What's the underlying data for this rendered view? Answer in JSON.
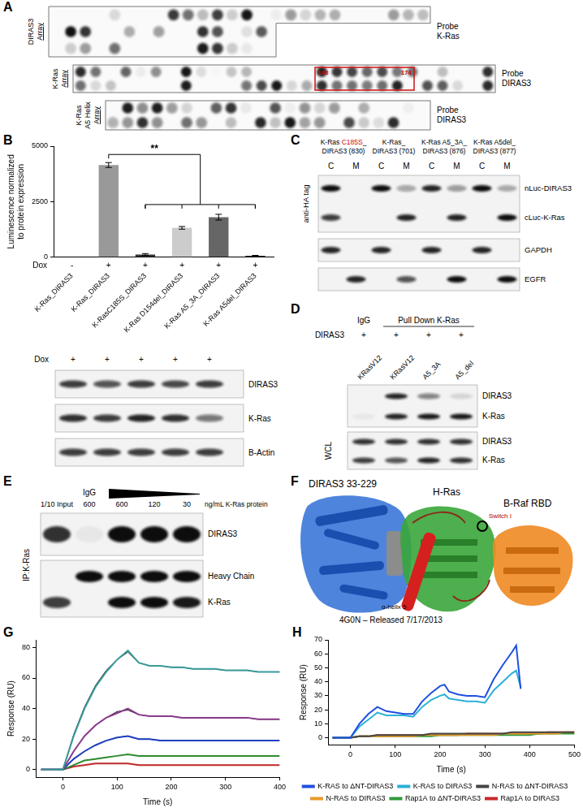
{
  "figure": {
    "panel_labels": {
      "a": "A",
      "b": "B",
      "c": "C",
      "d": "D",
      "e": "E",
      "f": "F",
      "g": "G",
      "h": "H"
    },
    "a": {
      "arrays": [
        {
          "label": [
            "DIRAS3",
            "Array"
          ],
          "probe": [
            "Probe",
            "K-Ras"
          ]
        },
        {
          "label": [
            "K-Ras",
            "Array"
          ],
          "probe": [
            "Probe",
            "DIRAS3"
          ],
          "box": [
            "148",
            "174"
          ]
        },
        {
          "label": [
            "K-Ras",
            "A5 Helix",
            "Array"
          ],
          "probe": [
            "Probe",
            "DIRAS3"
          ]
        }
      ]
    },
    "b_blot": {
      "treatment": "Dox",
      "signs": [
        "+",
        "+",
        "+",
        "+",
        "+"
      ],
      "rows": [
        "DIRAS3",
        "K-Ras",
        "B-Actin"
      ]
    },
    "c": {
      "side_label": "anti-HA tag",
      "lanes": [
        {
          "lines": [
            "K-Ras C185S_",
            "DIRAS3 (830)"
          ],
          "highlight": "C185S"
        },
        {
          "lines": [
            "K-Ras_",
            "DIRAS3 (701)"
          ]
        },
        {
          "lines": [
            "K-Ras A5_3A_",
            "DIRAS3 (876)"
          ]
        },
        {
          "lines": [
            "K-Ras A5del_",
            "DIRAS3 (877)"
          ]
        }
      ],
      "fractions": [
        "C",
        "M"
      ],
      "rows": [
        "nLuc-DIRAS3",
        "cLuc-K-Ras",
        "GAPDH",
        "EGFR"
      ]
    },
    "d": {
      "groups": [
        "IgG",
        "Pull Down K-Ras"
      ],
      "treatment": "DIRAS3",
      "signs": [
        "+",
        "+",
        "+",
        "+"
      ],
      "lanes": [
        "KRasV12",
        "KRasV12",
        "A5_3A",
        "A5_del"
      ],
      "ip_rows": [
        "DIRAS3",
        "K-Ras"
      ],
      "wcl_label": "WCL",
      "wcl_rows": [
        "DIRAS3",
        "K-Ras"
      ]
    },
    "e": {
      "input": "1/10 Input",
      "igg": "IgG",
      "amounts": [
        600,
        600,
        120,
        30
      ],
      "unit": "ng/mL K-Ras protein",
      "side_label": "IP:K-Ras",
      "rows": [
        "DIRAS3",
        "Heavy Chain",
        "K-Ras"
      ]
    },
    "f": {
      "labels": {
        "diras3": "DIRAS3 33-229",
        "hras": "H-Ras",
        "braf": "B-Raf RBD",
        "switch": "Switch I",
        "helix": "α-helix 5"
      },
      "caption": "4G0N – Released 7/17/2013"
    }
  },
  "chart_data": [
    {
      "panel": "b",
      "type": "bar",
      "y_label": [
        "Luminescence normalized",
        "to protein expression"
      ],
      "categories": [
        "K-Ras_DIRAS3",
        "K-Ras_DIRAS3",
        "K-RasC185S_DIRAS3",
        "K-Ras D154del_DIRAS3",
        "K-Ras A5_3A_DIRAS3",
        "K-Ras A5del_DIRAS3"
      ],
      "values": [
        0,
        4150,
        120,
        1320,
        1800,
        60
      ],
      "errors": [
        0,
        110,
        40,
        60,
        130,
        20
      ],
      "colors": [
        "#999999",
        "#999999",
        "#333333",
        "#cccccc",
        "#666666",
        "#222222"
      ],
      "ylim": [
        0,
        5000
      ],
      "yticks": [
        0,
        2500,
        5000
      ],
      "grid": false,
      "dox": {
        "label": "Dox",
        "values": [
          "-",
          "+",
          "+",
          "+",
          "+",
          "+"
        ]
      },
      "significance": {
        "label": "**",
        "from": 1,
        "to": [
          2,
          3,
          4,
          5
        ]
      }
    },
    {
      "panel": "g",
      "type": "line",
      "x_label": "Time (s)",
      "y_label": "Response (RU)",
      "x": [
        -40,
        -20,
        0,
        20,
        40,
        60,
        80,
        100,
        120,
        140,
        160,
        180,
        200,
        220,
        240,
        260,
        280,
        300,
        320,
        340,
        360,
        380,
        400
      ],
      "series": [
        {
          "color": "#3a9a9a",
          "values": [
            0,
            0,
            0,
            22,
            40,
            54,
            64,
            72,
            78,
            70,
            68,
            68,
            67,
            67,
            66,
            66,
            66,
            65,
            65,
            65,
            64,
            64,
            64
          ]
        },
        {
          "color": "#8b3a8b",
          "values": [
            0,
            0,
            0,
            12,
            22,
            29,
            34,
            37,
            40,
            36,
            35,
            35,
            35,
            34,
            34,
            34,
            34,
            34,
            34,
            34,
            33,
            33,
            33
          ]
        },
        {
          "color": "#1f3fbf",
          "values": [
            0,
            0,
            0,
            7,
            12,
            16,
            19,
            21,
            22,
            20,
            20,
            19,
            19,
            19,
            19,
            19,
            19,
            19,
            19,
            19,
            19,
            19,
            19
          ]
        },
        {
          "color": "#2e8b2e",
          "values": [
            0,
            0,
            0,
            3,
            6,
            7,
            8,
            9,
            10,
            9,
            9,
            9,
            9,
            9,
            9,
            9,
            9,
            9,
            9,
            9,
            9,
            9,
            9
          ]
        },
        {
          "color": "#c0262a",
          "values": [
            0,
            0,
            0,
            2,
            3,
            4,
            4,
            4,
            4,
            3,
            3,
            3,
            3,
            3,
            3,
            3,
            3,
            3,
            3,
            3,
            3,
            3,
            3
          ]
        },
        {
          "color": "#000000",
          "values": [
            null,
            null,
            0,
            23,
            41,
            55,
            65,
            72,
            77,
            70,
            68,
            68,
            67,
            67,
            66,
            66,
            66,
            65,
            65,
            65,
            64,
            64,
            64
          ]
        },
        {
          "color": "#000000",
          "values": [
            null,
            null,
            0,
            12,
            22,
            29,
            34,
            38,
            39,
            36,
            35,
            35,
            35,
            34,
            34,
            34,
            34,
            34,
            34,
            34,
            33,
            33,
            33
          ]
        },
        {
          "color": "#000000",
          "values": [
            null,
            null,
            0,
            7,
            12,
            16,
            19,
            21,
            22,
            20,
            20,
            19,
            19,
            19,
            19,
            19,
            19,
            19,
            19,
            19,
            19,
            19,
            19
          ]
        }
      ],
      "xlim": [
        -50,
        400
      ],
      "xticks": [
        0,
        100,
        200,
        300,
        400
      ],
      "ylim": [
        -5,
        85
      ],
      "yticks": [
        0,
        20,
        40,
        60,
        80
      ],
      "grid": false
    },
    {
      "panel": "h",
      "type": "line",
      "x_label": "Time (s)",
      "y_label": "Response (RU)",
      "x": [
        -40,
        -20,
        0,
        20,
        40,
        60,
        80,
        100,
        120,
        140,
        160,
        180,
        200,
        210,
        220,
        240,
        260,
        280,
        300,
        320,
        340,
        360,
        370,
        380,
        400,
        420,
        440,
        460,
        480,
        500
      ],
      "series": [
        {
          "name": "K-RAS to ΔNT-DIRAS3",
          "color": "#1f4fe0",
          "values": [
            0,
            0,
            0,
            10,
            17,
            22,
            19,
            18,
            17,
            17,
            26,
            32,
            37,
            38,
            33,
            31,
            30,
            30,
            29,
            42,
            52,
            61,
            66,
            35,
            null,
            null,
            null,
            null,
            null,
            null
          ]
        },
        {
          "name": "K-RAS to DIRAS3",
          "color": "#2ab0d8",
          "values": [
            0,
            0,
            0,
            8,
            13,
            18,
            16,
            16,
            16,
            15,
            22,
            27,
            30,
            31,
            28,
            27,
            26,
            26,
            25,
            34,
            40,
            46,
            48,
            36,
            null,
            null,
            null,
            null,
            null,
            null
          ]
        },
        {
          "name": "N-RAS to ΔNT-DIRAS3",
          "color": "#444444",
          "values": [
            0,
            0,
            0,
            1,
            1,
            2,
            2,
            2,
            2,
            2,
            2,
            3,
            3,
            3,
            3,
            3,
            3,
            3,
            3,
            3,
            3,
            4,
            4,
            4,
            4,
            4,
            4,
            4,
            4,
            4
          ]
        },
        {
          "name": "N-RAS to DIRAS3",
          "color": "#e89a2c",
          "values": [
            0,
            0,
            0,
            1,
            1,
            1,
            1,
            1,
            1,
            1,
            2,
            2,
            2,
            2,
            2,
            2,
            2,
            2,
            2,
            2,
            3,
            3,
            3,
            3,
            3,
            3,
            3,
            3,
            4,
            4
          ]
        },
        {
          "name": "Rap1A to ΔNT-DIRAS3",
          "color": "#2e9a3a",
          "values": [
            0,
            0,
            0,
            1,
            1,
            1,
            1,
            1,
            1,
            1,
            1,
            1,
            2,
            2,
            2,
            2,
            2,
            2,
            2,
            2,
            2,
            2,
            2,
            2,
            2,
            3,
            3,
            3,
            3,
            3
          ]
        },
        {
          "name": "Rap1A to DIRAS3",
          "color": "#c8282a",
          "values": [
            0,
            0,
            0,
            1,
            1,
            2,
            2,
            2,
            2,
            2,
            2,
            2,
            2,
            2,
            2,
            2,
            3,
            3,
            3,
            3,
            3,
            3,
            3,
            3,
            3,
            3,
            4,
            4,
            4,
            4
          ]
        }
      ],
      "xlim": [
        -50,
        500
      ],
      "xticks": [
        0,
        100,
        200,
        300,
        400,
        500
      ],
      "ylim": [
        -5,
        70
      ],
      "yticks": [
        0,
        10,
        20,
        30,
        40,
        50,
        60,
        70
      ],
      "grid": false,
      "legend": "bottom"
    }
  ]
}
